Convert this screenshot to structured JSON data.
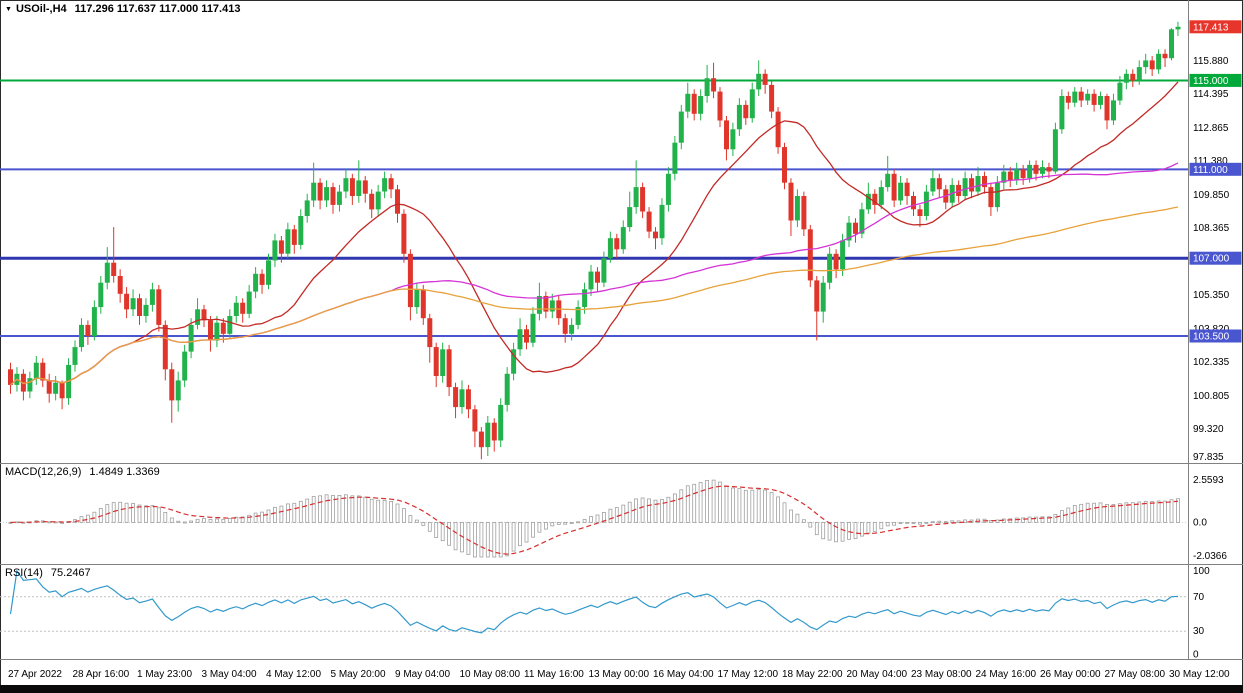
{
  "main_panel": {
    "symbol_timeframe": "USOil-,H4",
    "ohlc": "117.296 117.637 117.000 117.413",
    "collapse_icon": "▼"
  },
  "macd_panel": {
    "title": "MACD(12,26,9)",
    "values": "1.4849 1.3369",
    "axis_labels": [
      "2.5593",
      "0.0",
      "-2.0366"
    ]
  },
  "rsi_panel": {
    "title": "RSI(14)",
    "values": "75.2467",
    "axis_labels": [
      "100",
      "70",
      "30",
      "0"
    ]
  },
  "price_axis": {
    "ticks": [
      "115.880",
      "114.395",
      "112.865",
      "111.380",
      "109.850",
      "108.365",
      "105.350",
      "103.820",
      "102.335",
      "100.805",
      "99.320",
      "97.835"
    ],
    "badges": [
      {
        "value": "117.413",
        "price": 117.413,
        "bg": "#e8352c",
        "type": "current-price"
      },
      {
        "value": "115.000",
        "price": 115.0,
        "bg": "#00a93a",
        "type": "level"
      },
      {
        "value": "111.000",
        "price": 111.0,
        "bg": "#4a55d0",
        "type": "level"
      },
      {
        "value": "107.000",
        "price": 107.0,
        "bg": "#4a55d0",
        "type": "level"
      },
      {
        "value": "103.500",
        "price": 103.5,
        "bg": "#4a55d0",
        "type": "level"
      }
    ]
  },
  "levels": [
    {
      "price": 115.0,
      "color": "#00a93a",
      "width": 2
    },
    {
      "price": 111.0,
      "color": "#4a55d0",
      "width": 2
    },
    {
      "price": 107.0,
      "color": "#2e36b0",
      "width": 3
    },
    {
      "price": 103.5,
      "color": "#4a55d0",
      "width": 2
    }
  ],
  "time_axis": {
    "labels": [
      {
        "i": 0,
        "t": "27 Apr 2022"
      },
      {
        "i": 10,
        "t": "28 Apr 16:00"
      },
      {
        "i": 20,
        "t": "1 May 23:00"
      },
      {
        "i": 30,
        "t": "3 May 04:00"
      },
      {
        "i": 40,
        "t": "4 May 12:00"
      },
      {
        "i": 50,
        "t": "5 May 20:00"
      },
      {
        "i": 60,
        "t": "9 May 04:00"
      },
      {
        "i": 70,
        "t": "10 May 08:00"
      },
      {
        "i": 80,
        "t": "11 May 16:00"
      },
      {
        "i": 90,
        "t": "13 May 00:00"
      },
      {
        "i": 100,
        "t": "16 May 04:00"
      },
      {
        "i": 110,
        "t": "17 May 12:00"
      },
      {
        "i": 120,
        "t": "18 May 22:00"
      },
      {
        "i": 130,
        "t": "20 May 04:00"
      },
      {
        "i": 140,
        "t": "23 May 08:00"
      },
      {
        "i": 150,
        "t": "24 May 16:00"
      },
      {
        "i": 160,
        "t": "26 May 00:00"
      },
      {
        "i": 170,
        "t": "27 May 08:00"
      },
      {
        "i": 180,
        "t": "30 May 12:00"
      }
    ]
  },
  "chart_data": {
    "type": "candlestick",
    "symbol": "USOil-",
    "timeframe": "H4",
    "ohlc_current": {
      "open": 117.296,
      "high": 117.637,
      "low": 117.0,
      "close": 117.413
    },
    "y_range": [
      97.83,
      118.08
    ],
    "up_color": "#22b24c",
    "down_color": "#df352b",
    "overlays": [
      {
        "name": "ma-fast",
        "type": "sma",
        "period": 20,
        "color": "#c22a26"
      },
      {
        "name": "ma-mid",
        "type": "sma",
        "period": 60,
        "color": "#d633d6"
      },
      {
        "name": "ma-slow",
        "type": "sma",
        "period": 130,
        "color": "#e8a23a"
      }
    ],
    "indicators": [
      {
        "name": "MACD",
        "params": [
          12,
          26,
          9
        ],
        "values": [
          1.4849,
          1.3369
        ],
        "range": [
          -2.0366,
          2.5593
        ],
        "histogram_color": "#a0a0a0",
        "signal_color": "#d62f2f"
      },
      {
        "name": "RSI",
        "params": [
          14
        ],
        "value": 75.2467,
        "range": [
          0,
          100
        ],
        "levels": [
          30,
          70
        ],
        "color": "#3399cc"
      }
    ],
    "candles": [
      [
        102.0,
        102.3,
        100.9,
        101.3
      ],
      [
        101.3,
        102.1,
        101.0,
        101.8
      ],
      [
        101.8,
        102.0,
        100.6,
        101.0
      ],
      [
        101.0,
        101.9,
        100.7,
        101.6
      ],
      [
        101.6,
        102.6,
        101.3,
        102.3
      ],
      [
        102.3,
        102.5,
        101.2,
        101.5
      ],
      [
        101.5,
        101.8,
        100.5,
        100.9
      ],
      [
        100.9,
        101.7,
        100.6,
        101.4
      ],
      [
        101.4,
        101.5,
        100.2,
        100.7
      ],
      [
        100.7,
        102.5,
        100.4,
        102.2
      ],
      [
        102.2,
        103.3,
        101.9,
        103.0
      ],
      [
        103.0,
        104.3,
        102.8,
        104.0
      ],
      [
        104.0,
        104.2,
        103.1,
        103.5
      ],
      [
        103.5,
        105.1,
        103.3,
        104.8
      ],
      [
        104.8,
        106.2,
        104.5,
        105.9
      ],
      [
        105.9,
        107.5,
        105.6,
        106.8
      ],
      [
        106.8,
        108.4,
        105.9,
        106.2
      ],
      [
        106.2,
        106.5,
        105.0,
        105.4
      ],
      [
        105.4,
        105.7,
        104.3,
        104.7
      ],
      [
        104.7,
        105.6,
        104.4,
        105.2
      ],
      [
        105.2,
        105.4,
        104.0,
        104.4
      ],
      [
        104.4,
        105.2,
        104.1,
        104.9
      ],
      [
        104.9,
        105.9,
        104.6,
        105.6
      ],
      [
        105.6,
        105.8,
        103.7,
        104.0
      ],
      [
        104.0,
        104.2,
        101.5,
        102.0
      ],
      [
        102.0,
        102.3,
        99.6,
        100.6
      ],
      [
        100.6,
        101.9,
        100.1,
        101.5
      ],
      [
        101.5,
        103.1,
        101.2,
        102.8
      ],
      [
        102.8,
        104.3,
        102.5,
        104.0
      ],
      [
        104.0,
        105.2,
        103.8,
        104.7
      ],
      [
        104.7,
        104.9,
        103.9,
        104.2
      ],
      [
        104.2,
        104.4,
        102.8,
        103.3
      ],
      [
        103.3,
        104.4,
        103.0,
        104.1
      ],
      [
        104.1,
        104.3,
        103.2,
        103.6
      ],
      [
        103.6,
        104.7,
        103.4,
        104.4
      ],
      [
        104.4,
        105.3,
        104.1,
        105.0
      ],
      [
        105.0,
        105.2,
        104.1,
        104.5
      ],
      [
        104.5,
        105.8,
        104.3,
        105.5
      ],
      [
        105.5,
        106.6,
        105.2,
        106.3
      ],
      [
        106.3,
        106.5,
        105.4,
        105.8
      ],
      [
        105.8,
        107.2,
        105.6,
        106.9
      ],
      [
        106.9,
        108.1,
        106.6,
        107.8
      ],
      [
        107.8,
        108.0,
        106.8,
        107.2
      ],
      [
        107.2,
        108.6,
        107.0,
        108.3
      ],
      [
        108.3,
        108.5,
        107.2,
        107.6
      ],
      [
        107.6,
        109.2,
        107.4,
        108.9
      ],
      [
        108.9,
        109.9,
        108.6,
        109.6
      ],
      [
        109.6,
        111.3,
        109.3,
        110.4
      ],
      [
        110.4,
        110.6,
        109.2,
        109.6
      ],
      [
        109.6,
        110.5,
        109.3,
        110.2
      ],
      [
        110.2,
        110.4,
        109.0,
        109.4
      ],
      [
        109.4,
        110.3,
        109.1,
        110.0
      ],
      [
        110.0,
        111.0,
        109.7,
        110.6
      ],
      [
        110.6,
        110.8,
        109.4,
        109.8
      ],
      [
        109.8,
        111.4,
        109.5,
        110.5
      ],
      [
        110.5,
        110.7,
        109.5,
        109.9
      ],
      [
        109.9,
        110.1,
        108.8,
        109.2
      ],
      [
        109.2,
        110.3,
        108.9,
        110.0
      ],
      [
        110.0,
        110.9,
        109.7,
        110.6
      ],
      [
        110.6,
        110.8,
        109.7,
        110.1
      ],
      [
        110.1,
        110.3,
        108.6,
        109.0
      ],
      [
        109.0,
        109.2,
        106.8,
        107.2
      ],
      [
        107.2,
        107.4,
        104.2,
        104.8
      ],
      [
        104.8,
        105.9,
        104.5,
        105.6
      ],
      [
        105.6,
        105.8,
        104.0,
        104.3
      ],
      [
        104.3,
        104.5,
        102.3,
        103.0
      ],
      [
        103.0,
        103.2,
        101.2,
        101.7
      ],
      [
        101.7,
        103.2,
        101.4,
        102.9
      ],
      [
        102.9,
        103.1,
        100.8,
        101.2
      ],
      [
        101.2,
        101.4,
        99.8,
        100.3
      ],
      [
        100.3,
        101.5,
        100.0,
        101.1
      ],
      [
        101.1,
        101.3,
        99.8,
        100.2
      ],
      [
        100.2,
        100.4,
        98.5,
        99.2
      ],
      [
        99.2,
        99.4,
        97.95,
        98.5
      ],
      [
        98.5,
        99.9,
        98.1,
        99.6
      ],
      [
        99.6,
        99.8,
        98.3,
        98.8
      ],
      [
        98.8,
        100.7,
        98.5,
        100.4
      ],
      [
        100.4,
        102.1,
        100.1,
        101.8
      ],
      [
        101.8,
        103.2,
        101.5,
        102.9
      ],
      [
        102.9,
        104.3,
        102.6,
        103.8
      ],
      [
        103.8,
        104.0,
        102.9,
        103.2
      ],
      [
        103.2,
        104.8,
        103.0,
        104.5
      ],
      [
        104.5,
        105.9,
        104.2,
        105.3
      ],
      [
        105.3,
        105.5,
        104.3,
        104.6
      ],
      [
        104.6,
        105.4,
        104.3,
        105.1
      ],
      [
        105.1,
        105.3,
        104.0,
        104.3
      ],
      [
        104.3,
        104.5,
        103.2,
        103.6
      ],
      [
        103.6,
        104.3,
        103.3,
        104.0
      ],
      [
        104.0,
        105.1,
        103.8,
        104.8
      ],
      [
        104.8,
        105.9,
        104.5,
        105.6
      ],
      [
        105.6,
        106.7,
        105.3,
        106.4
      ],
      [
        106.4,
        106.6,
        105.5,
        105.9
      ],
      [
        105.9,
        107.3,
        105.7,
        107.0
      ],
      [
        107.0,
        108.2,
        106.8,
        107.9
      ],
      [
        107.9,
        108.1,
        107.0,
        107.4
      ],
      [
        107.4,
        108.7,
        107.2,
        108.4
      ],
      [
        108.4,
        110.0,
        108.2,
        109.3
      ],
      [
        109.3,
        111.4,
        109.0,
        110.2
      ],
      [
        110.2,
        110.4,
        108.8,
        109.1
      ],
      [
        109.1,
        109.3,
        107.9,
        108.2
      ],
      [
        108.2,
        108.4,
        107.4,
        107.9
      ],
      [
        107.9,
        109.7,
        107.6,
        109.4
      ],
      [
        109.4,
        111.1,
        109.1,
        110.8
      ],
      [
        110.8,
        112.5,
        110.5,
        112.2
      ],
      [
        112.2,
        113.9,
        111.9,
        113.6
      ],
      [
        113.6,
        114.9,
        113.3,
        114.4
      ],
      [
        114.4,
        114.6,
        113.2,
        113.5
      ],
      [
        113.5,
        114.6,
        113.2,
        114.3
      ],
      [
        114.3,
        115.7,
        114.0,
        115.1
      ],
      [
        115.1,
        115.8,
        114.2,
        114.5
      ],
      [
        114.5,
        114.7,
        112.9,
        113.2
      ],
      [
        113.2,
        113.4,
        111.4,
        111.9
      ],
      [
        111.9,
        113.1,
        111.6,
        112.8
      ],
      [
        112.8,
        114.2,
        112.5,
        113.9
      ],
      [
        113.9,
        114.1,
        113.0,
        113.3
      ],
      [
        113.3,
        114.9,
        113.1,
        114.6
      ],
      [
        114.6,
        115.9,
        114.3,
        115.3
      ],
      [
        115.3,
        115.5,
        114.4,
        114.8
      ],
      [
        114.8,
        115.0,
        113.3,
        113.6
      ],
      [
        113.6,
        113.8,
        111.7,
        112.0
      ],
      [
        112.0,
        112.2,
        110.1,
        110.4
      ],
      [
        110.4,
        110.6,
        108.0,
        108.7
      ],
      [
        108.7,
        110.1,
        108.4,
        109.8
      ],
      [
        109.8,
        110.0,
        108.0,
        108.3
      ],
      [
        108.3,
        108.5,
        105.7,
        106.0
      ],
      [
        106.0,
        106.2,
        103.3,
        104.6
      ],
      [
        104.6,
        106.2,
        104.1,
        105.9
      ],
      [
        105.9,
        107.5,
        105.6,
        107.2
      ],
      [
        107.2,
        107.4,
        106.1,
        106.5
      ],
      [
        106.5,
        108.1,
        106.2,
        107.8
      ],
      [
        107.8,
        108.9,
        107.5,
        108.6
      ],
      [
        108.6,
        108.8,
        107.7,
        108.1
      ],
      [
        108.1,
        109.5,
        107.9,
        109.2
      ],
      [
        109.2,
        110.4,
        109.0,
        109.9
      ],
      [
        109.9,
        110.1,
        109.0,
        109.4
      ],
      [
        109.4,
        110.5,
        109.2,
        110.2
      ],
      [
        110.2,
        111.6,
        110.0,
        110.8
      ],
      [
        110.8,
        111.0,
        109.3,
        109.6
      ],
      [
        109.6,
        110.7,
        109.4,
        110.4
      ],
      [
        110.4,
        110.6,
        109.4,
        109.8
      ],
      [
        109.8,
        110.0,
        108.9,
        109.2
      ],
      [
        109.2,
        109.4,
        108.4,
        108.9
      ],
      [
        108.9,
        110.3,
        108.7,
        110.0
      ],
      [
        110.0,
        111.0,
        109.8,
        110.6
      ],
      [
        110.6,
        110.8,
        109.7,
        110.1
      ],
      [
        110.1,
        110.3,
        109.2,
        109.5
      ],
      [
        109.5,
        110.6,
        109.3,
        110.3
      ],
      [
        110.3,
        110.5,
        109.5,
        109.8
      ],
      [
        109.8,
        110.9,
        109.6,
        110.6
      ],
      [
        110.6,
        110.8,
        109.7,
        110.0
      ],
      [
        110.0,
        111.1,
        109.8,
        110.7
      ],
      [
        110.7,
        110.9,
        109.9,
        110.2
      ],
      [
        110.2,
        110.4,
        108.9,
        109.3
      ],
      [
        109.3,
        110.7,
        109.1,
        110.4
      ],
      [
        110.4,
        111.2,
        110.1,
        110.9
      ],
      [
        110.9,
        111.1,
        110.2,
        110.5
      ],
      [
        110.5,
        111.3,
        110.3,
        111.0
      ],
      [
        111.0,
        111.2,
        110.3,
        110.6
      ],
      [
        110.6,
        111.4,
        110.4,
        111.2
      ],
      [
        111.2,
        111.4,
        110.5,
        110.8
      ],
      [
        110.8,
        111.4,
        110.6,
        111.1
      ],
      [
        111.1,
        111.3,
        110.6,
        110.9
      ],
      [
        110.9,
        113.1,
        110.8,
        112.8
      ],
      [
        112.8,
        114.6,
        112.6,
        114.3
      ],
      [
        114.3,
        114.5,
        113.7,
        114.0
      ],
      [
        114.0,
        114.7,
        113.8,
        114.5
      ],
      [
        114.5,
        114.7,
        113.8,
        114.1
      ],
      [
        114.1,
        114.6,
        113.9,
        114.4
      ],
      [
        114.4,
        114.6,
        113.6,
        113.9
      ],
      [
        113.9,
        114.5,
        113.7,
        114.3
      ],
      [
        114.3,
        114.4,
        112.8,
        113.2
      ],
      [
        113.2,
        114.4,
        113.0,
        114.1
      ],
      [
        114.1,
        115.2,
        113.9,
        114.9
      ],
      [
        114.9,
        115.5,
        114.6,
        115.3
      ],
      [
        115.3,
        115.5,
        114.7,
        115.0
      ],
      [
        115.0,
        115.9,
        114.8,
        115.6
      ],
      [
        115.6,
        116.2,
        115.3,
        115.9
      ],
      [
        115.9,
        116.1,
        115.2,
        115.5
      ],
      [
        115.5,
        116.4,
        115.3,
        116.2
      ],
      [
        116.2,
        116.4,
        115.6,
        116.0
      ],
      [
        116.0,
        117.35,
        115.9,
        117.3
      ],
      [
        117.296,
        117.637,
        117.0,
        117.413
      ]
    ]
  }
}
